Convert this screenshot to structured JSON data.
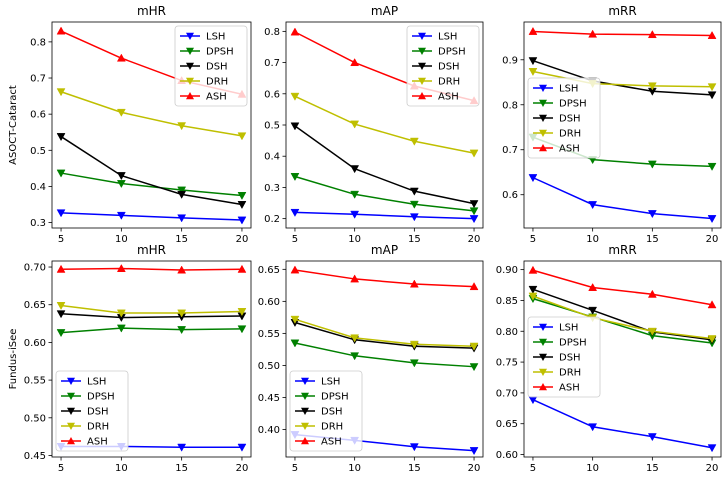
{
  "chart_data": [
    {
      "type": "line",
      "title": "mHR",
      "ylabel": "ASOCT-Cataract",
      "x": [
        5,
        10,
        15,
        20
      ],
      "xticks": [
        5,
        10,
        15,
        20
      ],
      "xlim": [
        4.25,
        20.75
      ],
      "ylim": [
        0.285,
        0.855
      ],
      "yticks": [
        0.3,
        0.4,
        0.5,
        0.6,
        0.7,
        0.8
      ],
      "yticklabels": [
        "0.3",
        "0.4",
        "0.5",
        "0.6",
        "0.7",
        "0.8"
      ],
      "legend_position": "upper right",
      "series": [
        {
          "name": "LSH",
          "color": "#0000ff",
          "marker": "down",
          "values": [
            0.327,
            0.32,
            0.313,
            0.307
          ]
        },
        {
          "name": "DPSH",
          "color": "#008000",
          "marker": "down",
          "values": [
            0.437,
            0.408,
            0.39,
            0.375
          ]
        },
        {
          "name": "DSH",
          "color": "#000000",
          "marker": "down",
          "values": [
            0.538,
            0.43,
            0.378,
            0.35
          ]
        },
        {
          "name": "DRH",
          "color": "#bfbf00",
          "marker": "down",
          "values": [
            0.662,
            0.605,
            0.568,
            0.54
          ]
        },
        {
          "name": "ASH",
          "color": "#ff0000",
          "marker": "up",
          "values": [
            0.83,
            0.755,
            0.693,
            0.655
          ]
        }
      ]
    },
    {
      "type": "line",
      "title": "mAP",
      "ylabel": "",
      "x": [
        5,
        10,
        15,
        20
      ],
      "xticks": [
        5,
        10,
        15,
        20
      ],
      "xlim": [
        4.25,
        20.75
      ],
      "ylim": [
        0.17,
        0.83
      ],
      "yticks": [
        0.2,
        0.3,
        0.4,
        0.5,
        0.6,
        0.7,
        0.8
      ],
      "yticklabels": [
        "0.2",
        "0.3",
        "0.4",
        "0.5",
        "0.6",
        "0.7",
        "0.8"
      ],
      "legend_position": "upper right",
      "series": [
        {
          "name": "LSH",
          "color": "#0000ff",
          "marker": "down",
          "values": [
            0.22,
            0.214,
            0.206,
            0.2
          ]
        },
        {
          "name": "DPSH",
          "color": "#008000",
          "marker": "down",
          "values": [
            0.335,
            0.278,
            0.246,
            0.225
          ]
        },
        {
          "name": "DSH",
          "color": "#000000",
          "marker": "down",
          "values": [
            0.497,
            0.36,
            0.288,
            0.248
          ]
        },
        {
          "name": "DRH",
          "color": "#bfbf00",
          "marker": "down",
          "values": [
            0.592,
            0.503,
            0.448,
            0.41
          ]
        },
        {
          "name": "ASH",
          "color": "#ff0000",
          "marker": "up",
          "values": [
            0.798,
            0.7,
            0.625,
            0.578
          ]
        }
      ]
    },
    {
      "type": "line",
      "title": "mRR",
      "ylabel": "",
      "x": [
        5,
        10,
        15,
        20
      ],
      "xticks": [
        5,
        10,
        15,
        20
      ],
      "xlim": [
        4.25,
        20.75
      ],
      "ylim": [
        0.526,
        0.984
      ],
      "yticks": [
        0.6,
        0.7,
        0.8,
        0.9
      ],
      "yticklabels": [
        "0.6",
        "0.7",
        "0.8",
        "0.9"
      ],
      "legend_position": "center left",
      "series": [
        {
          "name": "LSH",
          "color": "#0000ff",
          "marker": "down",
          "values": [
            0.638,
            0.578,
            0.558,
            0.547
          ]
        },
        {
          "name": "DPSH",
          "color": "#008000",
          "marker": "down",
          "values": [
            0.728,
            0.678,
            0.668,
            0.663
          ]
        },
        {
          "name": "DSH",
          "color": "#000000",
          "marker": "down",
          "values": [
            0.898,
            0.853,
            0.83,
            0.822
          ]
        },
        {
          "name": "DRH",
          "color": "#bfbf00",
          "marker": "down",
          "values": [
            0.874,
            0.847,
            0.842,
            0.84
          ]
        },
        {
          "name": "ASH",
          "color": "#ff0000",
          "marker": "up",
          "values": [
            0.963,
            0.957,
            0.956,
            0.954
          ]
        }
      ]
    },
    {
      "type": "line",
      "title": "mHR",
      "ylabel": "Fundus-iSee",
      "x": [
        5,
        10,
        15,
        20
      ],
      "xticks": [
        5,
        10,
        15,
        20
      ],
      "xlim": [
        4.25,
        20.75
      ],
      "ylim": [
        0.448,
        0.708
      ],
      "yticks": [
        0.45,
        0.5,
        0.55,
        0.6,
        0.65,
        0.7
      ],
      "yticklabels": [
        "0.45",
        "0.50",
        "0.55",
        "0.60",
        "0.65",
        "0.70"
      ],
      "legend_position": "lower left",
      "series": [
        {
          "name": "LSH",
          "color": "#0000ff",
          "marker": "down",
          "values": [
            0.462,
            0.462,
            0.461,
            0.461
          ]
        },
        {
          "name": "DPSH",
          "color": "#008000",
          "marker": "down",
          "values": [
            0.613,
            0.619,
            0.617,
            0.618
          ]
        },
        {
          "name": "DSH",
          "color": "#000000",
          "marker": "down",
          "values": [
            0.638,
            0.633,
            0.634,
            0.635
          ]
        },
        {
          "name": "DRH",
          "color": "#bfbf00",
          "marker": "down",
          "values": [
            0.649,
            0.639,
            0.639,
            0.641
          ]
        },
        {
          "name": "ASH",
          "color": "#ff0000",
          "marker": "up",
          "values": [
            0.697,
            0.698,
            0.696,
            0.697
          ]
        }
      ]
    },
    {
      "type": "line",
      "title": "mAP",
      "ylabel": "",
      "x": [
        5,
        10,
        15,
        20
      ],
      "xticks": [
        5,
        10,
        15,
        20
      ],
      "xlim": [
        4.25,
        20.75
      ],
      "ylim": [
        0.357,
        0.663
      ],
      "yticks": [
        0.4,
        0.45,
        0.5,
        0.55,
        0.6,
        0.65
      ],
      "yticklabels": [
        "0.40",
        "0.45",
        "0.50",
        "0.55",
        "0.60",
        "0.65"
      ],
      "legend_position": "lower left",
      "series": [
        {
          "name": "LSH",
          "color": "#0000ff",
          "marker": "down",
          "values": [
            0.392,
            0.383,
            0.373,
            0.367
          ]
        },
        {
          "name": "DPSH",
          "color": "#008000",
          "marker": "down",
          "values": [
            0.535,
            0.515,
            0.504,
            0.498
          ]
        },
        {
          "name": "DSH",
          "color": "#000000",
          "marker": "down",
          "values": [
            0.567,
            0.54,
            0.53,
            0.527
          ]
        },
        {
          "name": "DRH",
          "color": "#bfbf00",
          "marker": "down",
          "values": [
            0.572,
            0.543,
            0.533,
            0.53
          ]
        },
        {
          "name": "ASH",
          "color": "#ff0000",
          "marker": "up",
          "values": [
            0.649,
            0.635,
            0.627,
            0.623
          ]
        }
      ]
    },
    {
      "type": "line",
      "title": "mRR",
      "ylabel": "",
      "x": [
        5,
        10,
        15,
        20
      ],
      "xticks": [
        5,
        10,
        15,
        20
      ],
      "xlim": [
        4.25,
        20.75
      ],
      "ylim": [
        0.596,
        0.914
      ],
      "yticks": [
        0.6,
        0.65,
        0.7,
        0.75,
        0.8,
        0.85,
        0.9
      ],
      "yticklabels": [
        "0.60",
        "0.65",
        "0.70",
        "0.75",
        "0.80",
        "0.85",
        "0.90"
      ],
      "legend_position": "center left",
      "series": [
        {
          "name": "LSH",
          "color": "#0000ff",
          "marker": "down",
          "values": [
            0.689,
            0.645,
            0.629,
            0.611
          ]
        },
        {
          "name": "DPSH",
          "color": "#008000",
          "marker": "down",
          "values": [
            0.853,
            0.823,
            0.793,
            0.781
          ]
        },
        {
          "name": "DSH",
          "color": "#000000",
          "marker": "down",
          "values": [
            0.868,
            0.834,
            0.799,
            0.786
          ]
        },
        {
          "name": "DRH",
          "color": "#bfbf00",
          "marker": "down",
          "values": [
            0.857,
            0.822,
            0.8,
            0.788
          ]
        },
        {
          "name": "ASH",
          "color": "#ff0000",
          "marker": "up",
          "values": [
            0.899,
            0.871,
            0.86,
            0.843
          ]
        }
      ]
    }
  ]
}
